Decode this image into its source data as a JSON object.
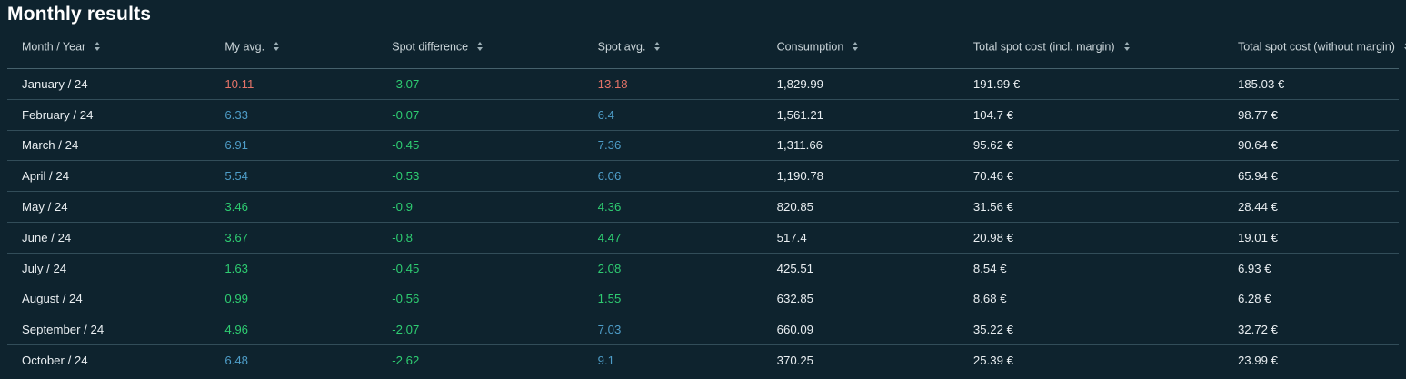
{
  "title": "Monthly results",
  "colors": {
    "red": "#e57368",
    "green": "#2ecc71",
    "blue": "#4e9dc8",
    "background": "#0e232e",
    "header_text": "#ccd6da",
    "row_text": "#e9eef1"
  },
  "table": {
    "columns": [
      {
        "key": "month",
        "label": "Month / Year"
      },
      {
        "key": "my_avg",
        "label": "My avg."
      },
      {
        "key": "spot_difference",
        "label": "Spot difference"
      },
      {
        "key": "spot_avg",
        "label": "Spot avg."
      },
      {
        "key": "consumption",
        "label": "Consumption"
      },
      {
        "key": "total_incl",
        "label": "Total spot cost (incl. margin)"
      },
      {
        "key": "total_without",
        "label": "Total spot cost (without margin)"
      }
    ],
    "rows": [
      {
        "month": "January / 24",
        "my_avg": {
          "text": "10.11",
          "color": "red"
        },
        "spot_difference": {
          "text": "-3.07",
          "color": "green"
        },
        "spot_avg": {
          "text": "13.18",
          "color": "red"
        },
        "consumption": "1,829.99",
        "total_incl": "191.99 €",
        "total_without": "185.03 €"
      },
      {
        "month": "February / 24",
        "my_avg": {
          "text": "6.33",
          "color": "blue"
        },
        "spot_difference": {
          "text": "-0.07",
          "color": "green"
        },
        "spot_avg": {
          "text": "6.4",
          "color": "blue"
        },
        "consumption": "1,561.21",
        "total_incl": "104.7 €",
        "total_without": "98.77 €"
      },
      {
        "month": "March / 24",
        "my_avg": {
          "text": "6.91",
          "color": "blue"
        },
        "spot_difference": {
          "text": "-0.45",
          "color": "green"
        },
        "spot_avg": {
          "text": "7.36",
          "color": "blue"
        },
        "consumption": "1,311.66",
        "total_incl": "95.62 €",
        "total_without": "90.64 €"
      },
      {
        "month": "April / 24",
        "my_avg": {
          "text": "5.54",
          "color": "blue"
        },
        "spot_difference": {
          "text": "-0.53",
          "color": "green"
        },
        "spot_avg": {
          "text": "6.06",
          "color": "blue"
        },
        "consumption": "1,190.78",
        "total_incl": "70.46 €",
        "total_without": "65.94 €"
      },
      {
        "month": "May / 24",
        "my_avg": {
          "text": "3.46",
          "color": "green"
        },
        "spot_difference": {
          "text": "-0.9",
          "color": "green"
        },
        "spot_avg": {
          "text": "4.36",
          "color": "green"
        },
        "consumption": "820.85",
        "total_incl": "31.56 €",
        "total_without": "28.44 €"
      },
      {
        "month": "June / 24",
        "my_avg": {
          "text": "3.67",
          "color": "green"
        },
        "spot_difference": {
          "text": "-0.8",
          "color": "green"
        },
        "spot_avg": {
          "text": "4.47",
          "color": "green"
        },
        "consumption": "517.4",
        "total_incl": "20.98 €",
        "total_without": "19.01 €"
      },
      {
        "month": "July / 24",
        "my_avg": {
          "text": "1.63",
          "color": "green"
        },
        "spot_difference": {
          "text": "-0.45",
          "color": "green"
        },
        "spot_avg": {
          "text": "2.08",
          "color": "green"
        },
        "consumption": "425.51",
        "total_incl": "8.54 €",
        "total_without": "6.93 €"
      },
      {
        "month": "August / 24",
        "my_avg": {
          "text": "0.99",
          "color": "green"
        },
        "spot_difference": {
          "text": "-0.56",
          "color": "green"
        },
        "spot_avg": {
          "text": "1.55",
          "color": "green"
        },
        "consumption": "632.85",
        "total_incl": "8.68 €",
        "total_without": "6.28 €"
      },
      {
        "month": "September / 24",
        "my_avg": {
          "text": "4.96",
          "color": "green"
        },
        "spot_difference": {
          "text": "-2.07",
          "color": "green"
        },
        "spot_avg": {
          "text": "7.03",
          "color": "blue"
        },
        "consumption": "660.09",
        "total_incl": "35.22 €",
        "total_without": "32.72 €"
      },
      {
        "month": "October / 24",
        "my_avg": {
          "text": "6.48",
          "color": "blue"
        },
        "spot_difference": {
          "text": "-2.62",
          "color": "green"
        },
        "spot_avg": {
          "text": "9.1",
          "color": "blue"
        },
        "consumption": "370.25",
        "total_incl": "25.39 €",
        "total_without": "23.99 €"
      }
    ]
  }
}
